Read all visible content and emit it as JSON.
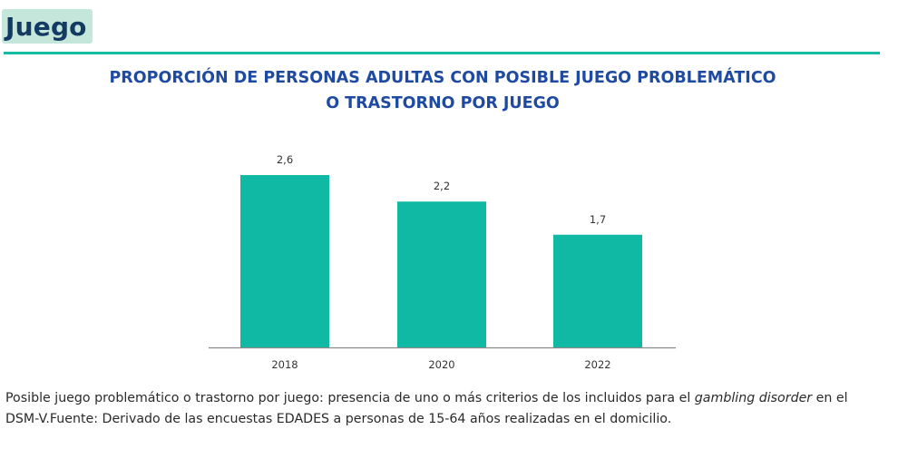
{
  "section": {
    "title": "Juego"
  },
  "colors": {
    "bar": "#10b9a3",
    "axis": "#8a8a8a",
    "title": "#1f4aa2",
    "section_title": "#123a63",
    "section_rule": "#16bba5"
  },
  "chart_data": {
    "type": "bar",
    "title_line1": "PROPORCIÓN DE PERSONAS ADULTAS CON POSIBLE JUEGO PROBLEMÁTICO",
    "title_line2": "O TRASTORNO POR JUEGO",
    "categories": [
      "2018",
      "2020",
      "2022"
    ],
    "values": [
      2.6,
      2.2,
      1.7
    ],
    "value_labels": [
      "2,6",
      "2,2",
      "1,7"
    ],
    "xlabel": "",
    "ylabel": "",
    "ylim": [
      0,
      2.6
    ],
    "grid": false,
    "legend": "none"
  },
  "footnote": {
    "part1": "Posible juego problemático o trastorno por juego: presencia de uno o más criterios de los incluidos para el ",
    "italic1": "gambling disorder",
    "part2": " en el DSM-V.Fuente: Derivado de las encuestas EDADES a personas de 15-64 años realizadas en el domicilio."
  }
}
